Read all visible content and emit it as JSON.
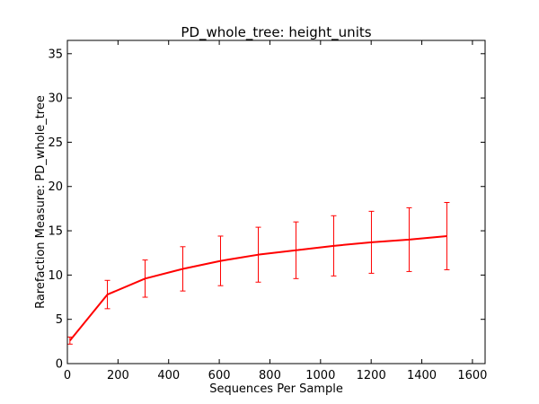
{
  "chart_data": {
    "type": "line",
    "title": "PD_whole_tree: height_units",
    "xlabel": "Sequences Per Sample",
    "ylabel": "Rarefaction Measure: PD_whole_tree",
    "xlim": [
      0,
      1650
    ],
    "ylim": [
      0,
      36.5
    ],
    "x_ticks": [
      0,
      200,
      400,
      600,
      800,
      1000,
      1200,
      1400,
      1600
    ],
    "y_ticks": [
      0,
      5,
      10,
      15,
      20,
      25,
      30,
      35
    ],
    "grid": false,
    "legend": "none",
    "series": [
      {
        "color": "#ff0000",
        "points": [
          {
            "x": 10,
            "y": 2.6,
            "err": 0.4
          },
          {
            "x": 158,
            "y": 7.8,
            "err": 1.6
          },
          {
            "x": 307,
            "y": 9.6,
            "err": 2.1
          },
          {
            "x": 456,
            "y": 10.7,
            "err": 2.5
          },
          {
            "x": 605,
            "y": 11.6,
            "err": 2.8
          },
          {
            "x": 754,
            "y": 12.3,
            "err": 3.1
          },
          {
            "x": 903,
            "y": 12.8,
            "err": 3.2
          },
          {
            "x": 1052,
            "y": 13.3,
            "err": 3.4
          },
          {
            "x": 1201,
            "y": 13.7,
            "err": 3.5
          },
          {
            "x": 1350,
            "y": 14.0,
            "err": 3.6
          },
          {
            "x": 1499,
            "y": 14.4,
            "err": 3.8
          }
        ]
      }
    ]
  }
}
